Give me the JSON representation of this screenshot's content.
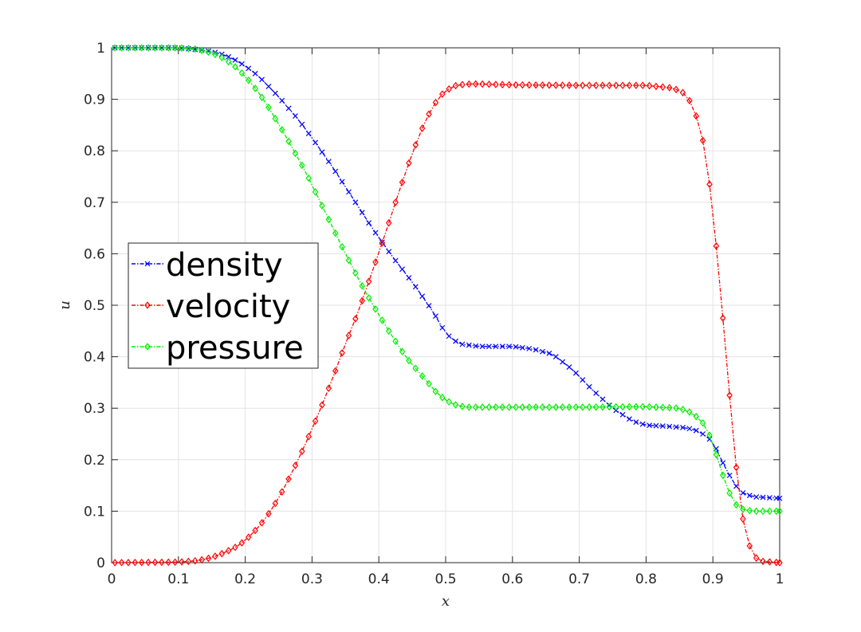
{
  "chart_data": {
    "type": "line",
    "title": "",
    "xlabel": "x",
    "ylabel": "u",
    "xlim": [
      0,
      1
    ],
    "ylim": [
      0,
      1
    ],
    "xticks": [
      0,
      0.1,
      0.2,
      0.3,
      0.4,
      0.5,
      0.6,
      0.7,
      0.8,
      0.9,
      1
    ],
    "xtick_labels": [
      "0",
      "0.1",
      "0.2",
      "0.3",
      "0.4",
      "0.5",
      "0.6",
      "0.7",
      "0.8",
      "0.9",
      "1"
    ],
    "yticks": [
      0,
      0.1,
      0.2,
      0.3,
      0.4,
      0.5,
      0.6,
      0.7,
      0.8,
      0.9,
      1
    ],
    "ytick_labels": [
      "0",
      "0.1",
      "0.2",
      "0.3",
      "0.4",
      "0.5",
      "0.6",
      "0.7",
      "0.8",
      "0.9",
      "1"
    ],
    "grid": true,
    "legend_position": "center-left",
    "series": [
      {
        "name": "density",
        "color": "#0000ff",
        "marker": "x",
        "x": [
          0,
          0.1,
          0.14,
          0.16,
          0.18,
          0.2,
          0.22,
          0.25,
          0.28,
          0.3,
          0.33,
          0.36,
          0.39,
          0.42,
          0.45,
          0.48,
          0.5,
          0.52,
          0.55,
          0.6,
          0.63,
          0.66,
          0.69,
          0.72,
          0.75,
          0.78,
          0.8,
          0.83,
          0.86,
          0.88,
          0.9,
          0.92,
          0.94,
          0.96,
          1.0
        ],
        "y": [
          1.0,
          1.0,
          0.995,
          0.99,
          0.98,
          0.965,
          0.945,
          0.905,
          0.86,
          0.825,
          0.77,
          0.71,
          0.65,
          0.595,
          0.545,
          0.49,
          0.445,
          0.425,
          0.42,
          0.42,
          0.415,
          0.405,
          0.375,
          0.335,
          0.3,
          0.275,
          0.267,
          0.265,
          0.262,
          0.255,
          0.235,
          0.18,
          0.138,
          0.128,
          0.125
        ]
      },
      {
        "name": "velocity",
        "color": "#ff0000",
        "marker": "diamond",
        "x": [
          0,
          0.1,
          0.13,
          0.15,
          0.17,
          0.19,
          0.21,
          0.23,
          0.25,
          0.27,
          0.29,
          0.31,
          0.33,
          0.35,
          0.37,
          0.39,
          0.41,
          0.43,
          0.45,
          0.47,
          0.49,
          0.5,
          0.51,
          0.52,
          0.54,
          0.6,
          0.7,
          0.8,
          0.84,
          0.86,
          0.87,
          0.88,
          0.89,
          0.9,
          0.91,
          0.92,
          0.93,
          0.94,
          0.95,
          0.96,
          0.97,
          1.0
        ],
        "y": [
          0.0,
          0.001,
          0.004,
          0.01,
          0.02,
          0.033,
          0.055,
          0.085,
          0.125,
          0.175,
          0.23,
          0.29,
          0.355,
          0.425,
          0.49,
          0.565,
          0.64,
          0.72,
          0.795,
          0.86,
          0.905,
          0.915,
          0.925,
          0.928,
          0.93,
          0.928,
          0.927,
          0.927,
          0.922,
          0.91,
          0.885,
          0.85,
          0.79,
          0.68,
          0.55,
          0.4,
          0.25,
          0.12,
          0.05,
          0.015,
          0.003,
          0.0
        ]
      },
      {
        "name": "pressure",
        "color": "#00ee00",
        "marker": "diamond",
        "x": [
          0,
          0.1,
          0.13,
          0.15,
          0.17,
          0.19,
          0.21,
          0.23,
          0.26,
          0.29,
          0.32,
          0.35,
          0.38,
          0.41,
          0.44,
          0.47,
          0.49,
          0.51,
          0.53,
          0.6,
          0.7,
          0.8,
          0.85,
          0.87,
          0.89,
          0.9,
          0.91,
          0.92,
          0.93,
          0.94,
          0.96,
          1.0
        ],
        "y": [
          1.0,
          1.0,
          0.997,
          0.99,
          0.978,
          0.958,
          0.93,
          0.895,
          0.83,
          0.76,
          0.68,
          0.6,
          0.525,
          0.46,
          0.4,
          0.355,
          0.325,
          0.308,
          0.302,
          0.302,
          0.302,
          0.303,
          0.3,
          0.29,
          0.265,
          0.23,
          0.19,
          0.15,
          0.12,
          0.105,
          0.1,
          0.1
        ]
      }
    ]
  }
}
